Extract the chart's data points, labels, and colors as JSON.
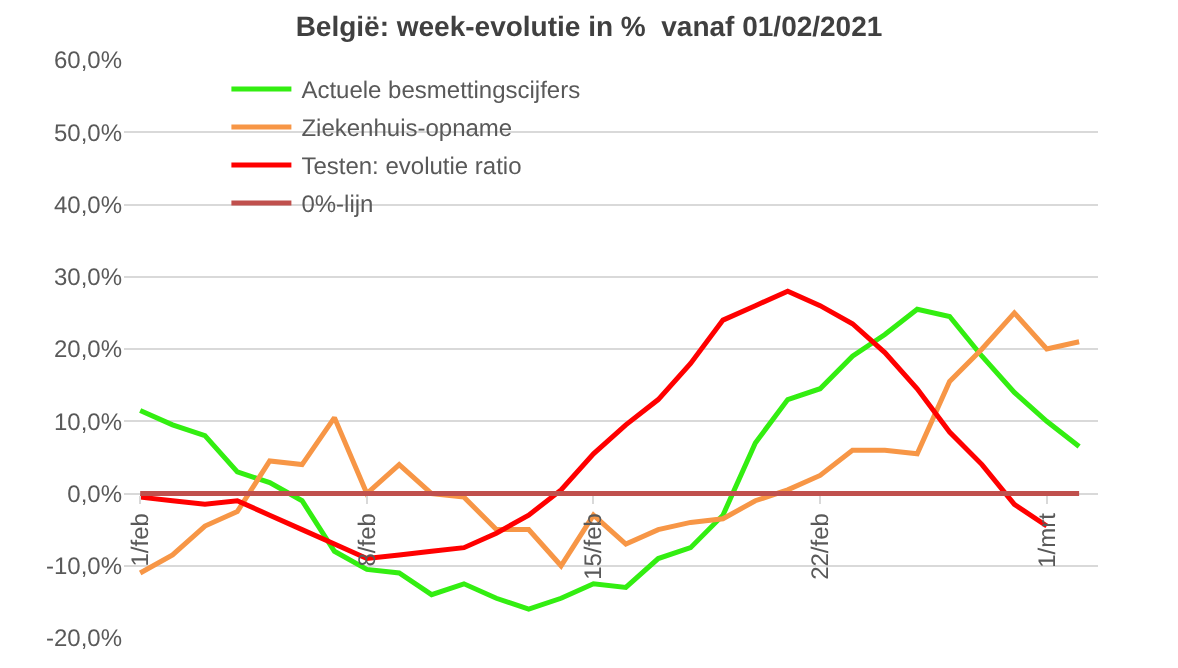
{
  "chart_data": {
    "type": "line",
    "title": "België: week-evolutie in %  vanaf 01/02/2021",
    "x": [
      "2021-02-01",
      "2021-02-02",
      "2021-02-03",
      "2021-02-04",
      "2021-02-05",
      "2021-02-06",
      "2021-02-07",
      "2021-02-08",
      "2021-02-09",
      "2021-02-10",
      "2021-02-11",
      "2021-02-12",
      "2021-02-13",
      "2021-02-14",
      "2021-02-15",
      "2021-02-16",
      "2021-02-17",
      "2021-02-18",
      "2021-02-19",
      "2021-02-20",
      "2021-02-21",
      "2021-02-22",
      "2021-02-23",
      "2021-02-24",
      "2021-02-25",
      "2021-02-26",
      "2021-02-27",
      "2021-02-28",
      "2021-03-01",
      "2021-03-02"
    ],
    "series": [
      {
        "name": "Actuele besmettingscijfers",
        "color": "#33ee11",
        "values": [
          11.5,
          9.5,
          8,
          3,
          1.5,
          -1,
          -8,
          -10.5,
          -11,
          -14,
          -12.5,
          -14.5,
          -16,
          -14.5,
          -12.5,
          -13,
          -9,
          -7.5,
          -3,
          7,
          13,
          14.5,
          19,
          22,
          25.5,
          24.5,
          19,
          14,
          10,
          6.5
        ]
      },
      {
        "name": "Ziekenhuis-opname",
        "color": "#f79646",
        "values": [
          -11,
          -8.5,
          -4.5,
          -2.5,
          4.5,
          4,
          10.5,
          0,
          4,
          0,
          -0.5,
          -5,
          -5,
          -10,
          -3,
          -7,
          -5,
          -4,
          -3.5,
          -1,
          0.5,
          2.5,
          6,
          6,
          5.5,
          15.5,
          20,
          25,
          20,
          21
        ]
      },
      {
        "name": "Testen: evolutie ratio",
        "color": "#ff0000",
        "values": [
          -0.5,
          -1,
          -1.5,
          -1,
          -3,
          -5,
          -7,
          -9,
          -8.5,
          -8,
          -7.5,
          -5.5,
          -3,
          0.5,
          5.5,
          9.5,
          13,
          18,
          24,
          26,
          28,
          26,
          23.5,
          19.5,
          14.5,
          8.5,
          4,
          -1.5,
          -4.5,
          null
        ]
      },
      {
        "name": "0%-lijn",
        "color": "#c0504d",
        "values": [
          0,
          0,
          0,
          0,
          0,
          0,
          0,
          0,
          0,
          0,
          0,
          0,
          0,
          0,
          0,
          0,
          0,
          0,
          0,
          0,
          0,
          0,
          0,
          0,
          0,
          0,
          0,
          0,
          0,
          0
        ]
      }
    ],
    "xlim": [
      "2021-01-31T12:00",
      "2021-03-02T14:00"
    ],
    "xticks": [
      {
        "value": "2021-02-01",
        "label": "1/feb"
      },
      {
        "value": "2021-02-08",
        "label": "8/feb"
      },
      {
        "value": "2021-02-15",
        "label": "15/feb"
      },
      {
        "value": "2021-02-22",
        "label": "22/feb"
      },
      {
        "value": "2021-03-01",
        "label": "1/mrt"
      }
    ],
    "ylim": [
      -20,
      60
    ],
    "yticks": [
      {
        "value": -20,
        "label": "-20,0%"
      },
      {
        "value": -10,
        "label": "-10,0%"
      },
      {
        "value": 0,
        "label": "0,0%"
      },
      {
        "value": 10,
        "label": "10,0%"
      },
      {
        "value": 20,
        "label": "20,0%"
      },
      {
        "value": 30,
        "label": "30,0%"
      },
      {
        "value": 40,
        "label": "40,0%"
      },
      {
        "value": 50,
        "label": "50,0%"
      },
      {
        "value": 60,
        "label": "60,0%"
      }
    ],
    "grid": "y",
    "legend": "top left",
    "marker": "none",
    "line_style": "solid"
  }
}
